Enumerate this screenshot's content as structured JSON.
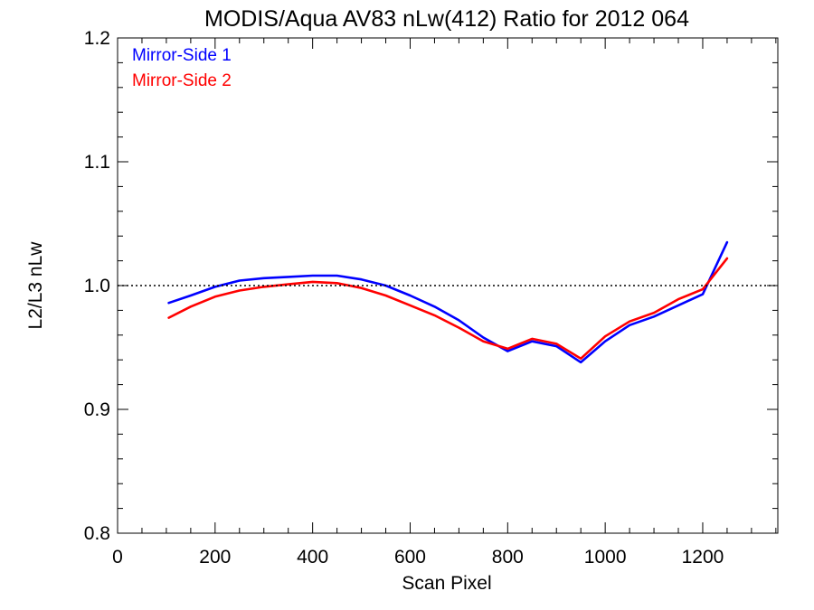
{
  "chart_data": {
    "type": "line",
    "title": "MODIS/Aqua AV83 nLw(412) Ratio for 2012 064",
    "xlabel": "Scan Pixel",
    "ylabel": "L2/L3 nLw",
    "xlim": [
      0,
      1354
    ],
    "ylim": [
      0.8,
      1.2
    ],
    "xticks": [
      0,
      200,
      400,
      600,
      800,
      1000,
      1200
    ],
    "yticks": [
      0.8,
      0.9,
      1.0,
      1.1,
      1.2
    ],
    "xtick_labels": [
      "0",
      "200",
      "400",
      "600",
      "800",
      "1000",
      "1200"
    ],
    "ytick_labels": [
      "0.8",
      "0.9",
      "1.0",
      "1.1",
      "1.2"
    ],
    "reference_line": {
      "y": 1.0,
      "style": "dotted"
    },
    "grid": false,
    "legend_position": "top-left",
    "series": [
      {
        "name": "Mirror-Side 1",
        "color": "#0000ff",
        "x": [
          105,
          150,
          200,
          250,
          300,
          350,
          400,
          450,
          500,
          550,
          600,
          650,
          700,
          750,
          800,
          850,
          900,
          950,
          1000,
          1050,
          1100,
          1150,
          1200,
          1250
        ],
        "values": [
          0.986,
          0.992,
          0.999,
          1.004,
          1.006,
          1.007,
          1.008,
          1.008,
          1.005,
          1.0,
          0.992,
          0.983,
          0.972,
          0.958,
          0.947,
          0.955,
          0.951,
          0.938,
          0.955,
          0.968,
          0.975,
          0.984,
          0.993,
          1.035
        ]
      },
      {
        "name": "Mirror-Side 2",
        "color": "#ff0000",
        "x": [
          105,
          150,
          200,
          250,
          300,
          350,
          400,
          450,
          500,
          550,
          600,
          650,
          700,
          750,
          800,
          850,
          900,
          950,
          1000,
          1050,
          1100,
          1150,
          1200,
          1250
        ],
        "values": [
          0.974,
          0.983,
          0.991,
          0.996,
          0.999,
          1.001,
          1.003,
          1.002,
          0.998,
          0.992,
          0.984,
          0.976,
          0.966,
          0.955,
          0.949,
          0.957,
          0.953,
          0.941,
          0.959,
          0.971,
          0.978,
          0.989,
          0.997,
          1.022
        ]
      }
    ]
  }
}
